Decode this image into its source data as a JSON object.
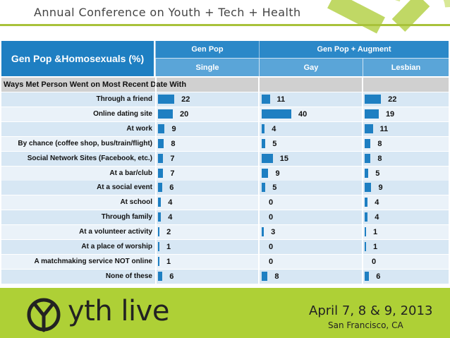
{
  "slide": {
    "title": "Annual Conference on Youth + Tech + Health",
    "table_title": "Gen Pop & Homosexuals (%)",
    "column_groups": [
      "Gen Pop",
      "Gen Pop + Augment"
    ],
    "columns": [
      "Single",
      "Gay",
      "Lesbian"
    ],
    "section": "Ways Met Person Went on Most Recent Date With",
    "rows": [
      {
        "label": "Through a friend",
        "single": 22,
        "gay": 11,
        "lesbian": 22
      },
      {
        "label": "Online dating site",
        "single": 20,
        "gay": 40,
        "lesbian": 19
      },
      {
        "label": "At work",
        "single": 9,
        "gay": 4,
        "lesbian": 11
      },
      {
        "label": "By chance (coffee shop, bus/train/flight)",
        "single": 8,
        "gay": 5,
        "lesbian": 8
      },
      {
        "label": "Social Network Sites (Facebook, etc.)",
        "single": 7,
        "gay": 15,
        "lesbian": 8
      },
      {
        "label": "At a bar/club",
        "single": 7,
        "gay": 9,
        "lesbian": 5
      },
      {
        "label": "At a social event",
        "single": 6,
        "gay": 5,
        "lesbian": 9
      },
      {
        "label": "At school",
        "single": 4,
        "gay": 0,
        "lesbian": 4
      },
      {
        "label": "Through family",
        "single": 4,
        "gay": 0,
        "lesbian": 4
      },
      {
        "label": "At a volunteer activity",
        "single": 2,
        "gay": 3,
        "lesbian": 1
      },
      {
        "label": "At a place of worship",
        "single": 1,
        "gay": 0,
        "lesbian": 1
      },
      {
        "label": "A matchmaking service NOT online",
        "single": 1,
        "gay": 0,
        "lesbian": 0
      },
      {
        "label": "None of these",
        "single": 6,
        "gay": 8,
        "lesbian": 6
      }
    ]
  },
  "footer": {
    "brand": "yth live",
    "dates": "April 7, 8 & 9, 2013",
    "location": "San Francisco, CA"
  },
  "colors": {
    "header_blue": "#1e7fc2",
    "header_light_blue": "#5aa5d8",
    "bar": "#1e7fc2",
    "row_odd": "#d7e7f4",
    "row_even": "#eaf2f9",
    "footer_green": "#aed036"
  },
  "chart_data": {
    "type": "bar",
    "title": "Ways Met Person Went on Most Recent Date With",
    "categories": [
      "Through a friend",
      "Online dating site",
      "At work",
      "By chance (coffee shop, bus/train/flight)",
      "Social Network Sites (Facebook, etc.)",
      "At a bar/club",
      "At a social event",
      "At school",
      "Through family",
      "At a volunteer activity",
      "At a place of worship",
      "A matchmaking service NOT online",
      "None of these"
    ],
    "series": [
      {
        "name": "Single",
        "values": [
          22,
          20,
          9,
          8,
          7,
          7,
          6,
          4,
          4,
          2,
          1,
          1,
          6
        ]
      },
      {
        "name": "Gay",
        "values": [
          11,
          40,
          4,
          5,
          15,
          9,
          5,
          0,
          0,
          3,
          0,
          0,
          8
        ]
      },
      {
        "name": "Lesbian",
        "values": [
          22,
          19,
          11,
          8,
          8,
          5,
          9,
          4,
          4,
          1,
          1,
          0,
          6
        ]
      }
    ]
  }
}
